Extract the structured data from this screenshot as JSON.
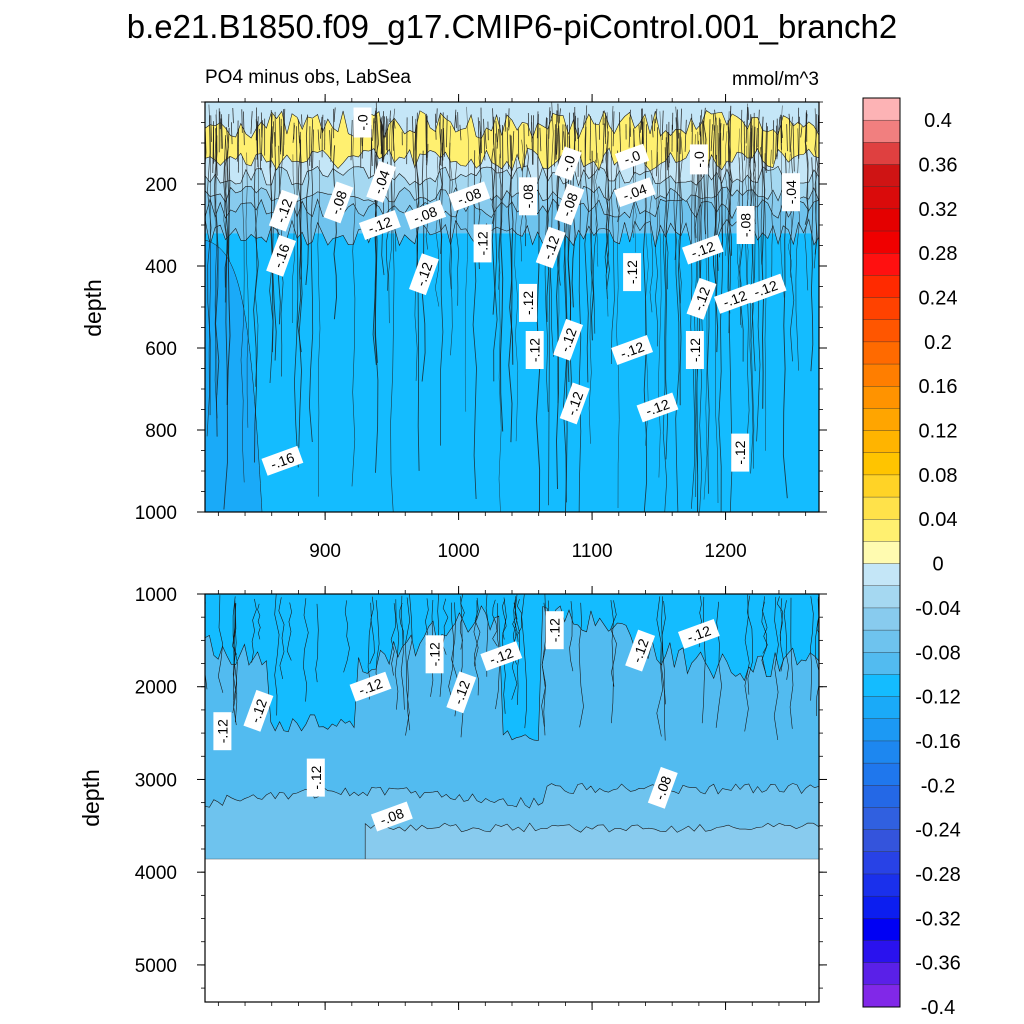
{
  "chart_data": {
    "type": "heatmap",
    "title": "b.e21.B1850.f09_g17.CMIP6-piControl.001_branch2",
    "panel_left_label": "PO4 minus obs, LabSea",
    "units": "mmol/m^3",
    "ylabel": "depth",
    "xlim": [
      810,
      1270
    ],
    "x_ticks": [
      900,
      1000,
      1100,
      1200
    ],
    "x_tick_labels": [
      "900",
      "1000",
      "1100",
      "1200"
    ],
    "top_panel": {
      "ylim": [
        1000,
        0
      ],
      "y_ticks": [
        200,
        400,
        600,
        800,
        1000
      ],
      "y_tick_labels": [
        "200",
        "400",
        "600",
        "800",
        "1000"
      ],
      "bands": [
        {
          "depth": 55,
          "value": 0.01
        },
        {
          "depth": 135,
          "value": 0.02
        },
        {
          "depth": 180,
          "value": -0.03
        },
        {
          "depth": 225,
          "value": -0.05
        },
        {
          "depth": 260,
          "value": -0.07
        },
        {
          "depth": 320,
          "value": -0.09
        },
        {
          "depth": 1000,
          "value": -0.13
        }
      ],
      "contour_labels": [
        {
          "text": "-.0",
          "x": 928,
          "depth": 50
        },
        {
          "text": "-.0",
          "x": 1082,
          "depth": 150
        },
        {
          "text": "-.0",
          "x": 1130,
          "depth": 135
        },
        {
          "text": "-.0",
          "x": 1180,
          "depth": 140
        },
        {
          "text": "-.04",
          "x": 942,
          "depth": 195
        },
        {
          "text": "-.04",
          "x": 1132,
          "depth": 220
        },
        {
          "text": "-.04",
          "x": 1249,
          "depth": 220
        },
        {
          "text": "-.08",
          "x": 910,
          "depth": 245
        },
        {
          "text": "-.08",
          "x": 1008,
          "depth": 230
        },
        {
          "text": "-.08",
          "x": 1052,
          "depth": 230
        },
        {
          "text": "-.08",
          "x": 1083,
          "depth": 250
        },
        {
          "text": "-.08",
          "x": 975,
          "depth": 275
        },
        {
          "text": "-.08",
          "x": 1215,
          "depth": 300
        },
        {
          "text": "-.12",
          "x": 869,
          "depth": 265
        },
        {
          "text": "-.12",
          "x": 941,
          "depth": 300
        },
        {
          "text": "-.12",
          "x": 1018,
          "depth": 345
        },
        {
          "text": "-.12",
          "x": 1069,
          "depth": 355
        },
        {
          "text": "-.12",
          "x": 1183,
          "depth": 360
        },
        {
          "text": "-.12",
          "x": 1130,
          "depth": 415
        },
        {
          "text": "-.12",
          "x": 974,
          "depth": 420
        },
        {
          "text": "-.12",
          "x": 1230,
          "depth": 455
        },
        {
          "text": "-.12",
          "x": 1052,
          "depth": 490
        },
        {
          "text": "-.12",
          "x": 1182,
          "depth": 480
        },
        {
          "text": "-.12",
          "x": 1207,
          "depth": 480
        },
        {
          "text": "-.12",
          "x": 1057,
          "depth": 605
        },
        {
          "text": "-.12",
          "x": 1082,
          "depth": 580
        },
        {
          "text": "-.12",
          "x": 1130,
          "depth": 605
        },
        {
          "text": "-.12",
          "x": 1177,
          "depth": 605
        },
        {
          "text": "-.12",
          "x": 1087,
          "depth": 735
        },
        {
          "text": "-.12",
          "x": 1149,
          "depth": 745
        },
        {
          "text": "-.12",
          "x": 1211,
          "depth": 855
        },
        {
          "text": "-.16",
          "x": 867,
          "depth": 375
        },
        {
          "text": "-.16",
          "x": 868,
          "depth": 875
        }
      ]
    },
    "bottom_panel": {
      "ylim": [
        1000,
        5400
      ],
      "y_ticks": [
        1000,
        2000,
        3000,
        4000,
        5000
      ],
      "y_tick_labels": [
        "1000",
        "2000",
        "3000",
        "4000",
        "5000"
      ],
      "seafloor_depth": 3860,
      "bands": [
        {
          "depth": 1700,
          "value": -0.13
        },
        {
          "depth": 3250,
          "value": -0.11
        },
        {
          "depth": 3860,
          "value": -0.09
        }
      ],
      "contour_labels": [
        {
          "text": "-.12",
          "x": 823,
          "depth": 2480
        },
        {
          "text": "-.12",
          "x": 850,
          "depth": 2260
        },
        {
          "text": "-.12",
          "x": 934,
          "depth": 2000
        },
        {
          "text": "-.12",
          "x": 982,
          "depth": 1650
        },
        {
          "text": "-.12",
          "x": 1002,
          "depth": 2060
        },
        {
          "text": "-.12",
          "x": 1032,
          "depth": 1670
        },
        {
          "text": "-.12",
          "x": 1072,
          "depth": 1390
        },
        {
          "text": "-.12",
          "x": 1136,
          "depth": 1610
        },
        {
          "text": "-.12",
          "x": 1180,
          "depth": 1430
        },
        {
          "text": "-.12",
          "x": 893,
          "depth": 2980
        },
        {
          "text": "-.08",
          "x": 1153,
          "depth": 3090
        },
        {
          "text": "-.08",
          "x": 950,
          "depth": 3400
        }
      ]
    },
    "colorbar": {
      "levels": [
        0.4,
        0.36,
        0.32,
        0.28,
        0.24,
        0.2,
        0.16,
        0.12,
        0.08,
        0.04,
        0,
        -0.04,
        -0.08,
        -0.12,
        -0.16,
        -0.2,
        -0.24,
        -0.28,
        -0.32,
        -0.36,
        -0.4
      ],
      "labels": [
        "0.4",
        "0.36",
        "0.32",
        "0.28",
        "0.24",
        "0.2",
        "0.16",
        "0.12",
        "0.08",
        "0.04",
        "0",
        "-0.04",
        "-0.08",
        "-0.12",
        "-0.16",
        "-0.2",
        "-0.24",
        "-0.28",
        "-0.32",
        "-0.36",
        "-0.4"
      ],
      "colors": [
        "#fdb3b5",
        "#f17f7f",
        "#df4040",
        "#cf1414",
        "#da0b0b",
        "#e40000",
        "#f00000",
        "#ff1010",
        "#ff2a00",
        "#ff4200",
        "#ff5600",
        "#ff6a00",
        "#ff7e00",
        "#ff9300",
        "#ffa500",
        "#ffb400",
        "#ffc400",
        "#ffd326",
        "#ffe24a",
        "#fff070",
        "#fffbb0",
        "#c4e6f7",
        "#a5d8f1",
        "#88cbee",
        "#6ec3ee",
        "#52bbf0",
        "#14bcff",
        "#1aaaf8",
        "#1c99f4",
        "#1d87f0",
        "#1f77ed",
        "#2468e6",
        "#3060e0",
        "#3454dc",
        "#2842e6",
        "#1a30ec",
        "#0c1ef0",
        "#0000f4",
        "#2a12ee",
        "#5a20e8",
        "#8128e8"
      ]
    }
  }
}
